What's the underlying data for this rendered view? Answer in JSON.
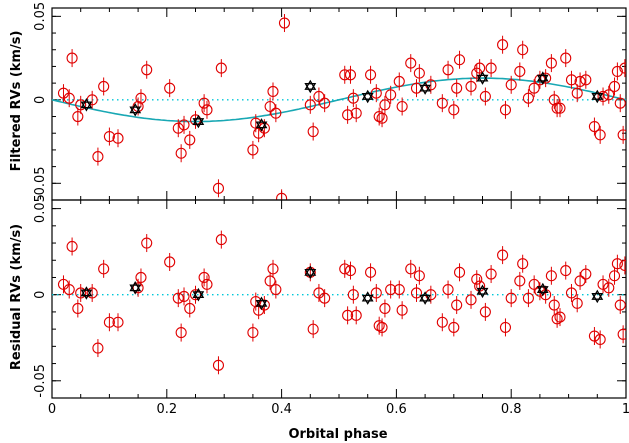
{
  "chart_data": [
    {
      "type": "scatter",
      "name": "filtered",
      "ylabel": "Filtered RVs (km/s)",
      "xlim": [
        0,
        1
      ],
      "ylim": [
        -0.06,
        0.055
      ],
      "y_ticks": [
        0.05,
        0,
        -0.05
      ],
      "y_tick_labels": [
        "0.05",
        "0",
        "-0.05"
      ],
      "zero_line": true,
      "model_curve": {
        "amplitude": 0.013,
        "peak_phase": 0.75
      },
      "points": [
        [
          0.02,
          0.004
        ],
        [
          0.03,
          0.001
        ],
        [
          0.035,
          0.025
        ],
        [
          0.045,
          -0.01
        ],
        [
          0.05,
          -0.003
        ],
        [
          0.07,
          0.0
        ],
        [
          0.08,
          -0.034
        ],
        [
          0.09,
          0.008
        ],
        [
          0.1,
          -0.022
        ],
        [
          0.115,
          -0.023
        ],
        [
          0.15,
          -0.004
        ],
        [
          0.155,
          0.001
        ],
        [
          0.165,
          0.018
        ],
        [
          0.205,
          0.007
        ],
        [
          0.22,
          -0.017
        ],
        [
          0.225,
          -0.032
        ],
        [
          0.23,
          -0.015
        ],
        [
          0.24,
          -0.024
        ],
        [
          0.25,
          -0.012
        ],
        [
          0.265,
          -0.002
        ],
        [
          0.27,
          -0.006
        ],
        [
          0.29,
          -0.053
        ],
        [
          0.295,
          0.019
        ],
        [
          0.35,
          -0.03
        ],
        [
          0.355,
          -0.014
        ],
        [
          0.36,
          -0.02
        ],
        [
          0.37,
          -0.017
        ],
        [
          0.38,
          -0.004
        ],
        [
          0.385,
          0.005
        ],
        [
          0.39,
          -0.008
        ],
        [
          0.4,
          -0.059
        ],
        [
          0.405,
          0.046
        ],
        [
          0.45,
          -0.003
        ],
        [
          0.455,
          -0.019
        ],
        [
          0.465,
          0.002
        ],
        [
          0.475,
          -0.002
        ],
        [
          0.51,
          0.015
        ],
        [
          0.515,
          -0.009
        ],
        [
          0.52,
          0.015
        ],
        [
          0.525,
          0.001
        ],
        [
          0.53,
          -0.008
        ],
        [
          0.555,
          0.015
        ],
        [
          0.565,
          0.004
        ],
        [
          0.57,
          -0.01
        ],
        [
          0.575,
          -0.011
        ],
        [
          0.58,
          -0.003
        ],
        [
          0.59,
          0.003
        ],
        [
          0.605,
          0.011
        ],
        [
          0.61,
          -0.004
        ],
        [
          0.625,
          0.022
        ],
        [
          0.635,
          0.007
        ],
        [
          0.64,
          0.016
        ],
        [
          0.66,
          0.009
        ],
        [
          0.68,
          -0.002
        ],
        [
          0.69,
          0.018
        ],
        [
          0.7,
          -0.006
        ],
        [
          0.705,
          0.007
        ],
        [
          0.71,
          0.024
        ],
        [
          0.73,
          0.008
        ],
        [
          0.74,
          0.016
        ],
        [
          0.745,
          0.019
        ],
        [
          0.755,
          0.002
        ],
        [
          0.765,
          0.019
        ],
        [
          0.785,
          0.033
        ],
        [
          0.79,
          -0.006
        ],
        [
          0.8,
          0.009
        ],
        [
          0.815,
          0.017
        ],
        [
          0.82,
          0.03
        ],
        [
          0.83,
          0.001
        ],
        [
          0.84,
          0.007
        ],
        [
          0.85,
          0.012
        ],
        [
          0.86,
          0.013
        ],
        [
          0.87,
          0.022
        ],
        [
          0.875,
          0.0
        ],
        [
          0.88,
          -0.005
        ],
        [
          0.885,
          -0.005
        ],
        [
          0.895,
          0.025
        ],
        [
          0.905,
          0.012
        ],
        [
          0.915,
          0.004
        ],
        [
          0.92,
          0.011
        ],
        [
          0.93,
          0.012
        ],
        [
          0.945,
          -0.016
        ],
        [
          0.955,
          -0.021
        ],
        [
          0.96,
          0.002
        ],
        [
          0.97,
          0.003
        ],
        [
          0.98,
          0.008
        ],
        [
          0.985,
          0.017
        ],
        [
          0.99,
          -0.002
        ],
        [
          0.995,
          -0.021
        ],
        [
          0.998,
          0.019
        ]
      ],
      "binned_points": [
        [
          0.06,
          -0.003
        ],
        [
          0.145,
          -0.006
        ],
        [
          0.255,
          -0.013
        ],
        [
          0.365,
          -0.015
        ],
        [
          0.45,
          0.008
        ],
        [
          0.55,
          0.002
        ],
        [
          0.65,
          0.007
        ],
        [
          0.75,
          0.013
        ],
        [
          0.855,
          0.013
        ],
        [
          0.95,
          0.002
        ]
      ]
    },
    {
      "type": "scatter",
      "name": "residual",
      "xlabel": "Orbital phase",
      "ylabel": "Residual RVs (km/s)",
      "xlim": [
        0,
        1
      ],
      "ylim": [
        -0.06,
        0.055
      ],
      "x_ticks": [
        0,
        0.2,
        0.4,
        0.6,
        0.8,
        1
      ],
      "x_tick_labels": [
        "0",
        "0.2",
        "0.4",
        "0.6",
        "0.8",
        "1"
      ],
      "y_ticks": [
        0.05,
        0,
        -0.05
      ],
      "y_tick_labels": [
        "0.05",
        "0",
        "-0.05"
      ],
      "zero_line": true,
      "points": [
        [
          0.02,
          0.006
        ],
        [
          0.03,
          0.003
        ],
        [
          0.035,
          0.028
        ],
        [
          0.045,
          -0.008
        ],
        [
          0.05,
          0.001
        ],
        [
          0.07,
          0.001
        ],
        [
          0.08,
          -0.031
        ],
        [
          0.09,
          0.015
        ],
        [
          0.1,
          -0.016
        ],
        [
          0.115,
          -0.016
        ],
        [
          0.15,
          0.004
        ],
        [
          0.155,
          0.01
        ],
        [
          0.165,
          0.03
        ],
        [
          0.205,
          0.019
        ],
        [
          0.22,
          -0.002
        ],
        [
          0.225,
          -0.022
        ],
        [
          0.23,
          -0.001
        ],
        [
          0.24,
          -0.008
        ],
        [
          0.25,
          0.0
        ],
        [
          0.265,
          0.01
        ],
        [
          0.27,
          0.006
        ],
        [
          0.29,
          -0.041
        ],
        [
          0.295,
          0.032
        ],
        [
          0.35,
          -0.022
        ],
        [
          0.355,
          -0.004
        ],
        [
          0.36,
          -0.009
        ],
        [
          0.37,
          -0.006
        ],
        [
          0.38,
          0.008
        ],
        [
          0.385,
          0.015
        ],
        [
          0.39,
          0.003
        ],
        [
          0.45,
          0.013
        ],
        [
          0.455,
          -0.02
        ],
        [
          0.465,
          0.001
        ],
        [
          0.475,
          -0.002
        ],
        [
          0.51,
          0.015
        ],
        [
          0.515,
          -0.012
        ],
        [
          0.52,
          0.014
        ],
        [
          0.525,
          0.0
        ],
        [
          0.53,
          -0.012
        ],
        [
          0.555,
          0.013
        ],
        [
          0.565,
          0.001
        ],
        [
          0.57,
          -0.018
        ],
        [
          0.575,
          -0.019
        ],
        [
          0.58,
          -0.008
        ],
        [
          0.59,
          0.003
        ],
        [
          0.605,
          0.003
        ],
        [
          0.61,
          -0.009
        ],
        [
          0.625,
          0.015
        ],
        [
          0.635,
          0.001
        ],
        [
          0.64,
          0.011
        ],
        [
          0.66,
          0.0
        ],
        [
          0.68,
          -0.016
        ],
        [
          0.69,
          0.003
        ],
        [
          0.7,
          -0.019
        ],
        [
          0.705,
          -0.006
        ],
        [
          0.71,
          0.013
        ],
        [
          0.73,
          -0.003
        ],
        [
          0.74,
          0.009
        ],
        [
          0.745,
          0.005
        ],
        [
          0.755,
          -0.01
        ],
        [
          0.765,
          0.012
        ],
        [
          0.785,
          0.023
        ],
        [
          0.79,
          -0.019
        ],
        [
          0.8,
          -0.002
        ],
        [
          0.815,
          0.008
        ],
        [
          0.82,
          0.018
        ],
        [
          0.83,
          -0.002
        ],
        [
          0.84,
          0.006
        ],
        [
          0.85,
          0.002
        ],
        [
          0.86,
          0.0
        ],
        [
          0.87,
          0.011
        ],
        [
          0.875,
          -0.006
        ],
        [
          0.88,
          -0.014
        ],
        [
          0.885,
          -0.013
        ],
        [
          0.895,
          0.014
        ],
        [
          0.905,
          0.001
        ],
        [
          0.915,
          -0.005
        ],
        [
          0.92,
          0.008
        ],
        [
          0.93,
          0.012
        ],
        [
          0.945,
          -0.024
        ],
        [
          0.955,
          -0.026
        ],
        [
          0.96,
          0.006
        ],
        [
          0.97,
          0.004
        ],
        [
          0.98,
          0.011
        ],
        [
          0.985,
          0.018
        ],
        [
          0.99,
          -0.006
        ],
        [
          0.995,
          -0.023
        ],
        [
          0.998,
          0.017
        ]
      ],
      "binned_points": [
        [
          0.06,
          0.001
        ],
        [
          0.145,
          0.004
        ],
        [
          0.255,
          0.0
        ],
        [
          0.365,
          -0.005
        ],
        [
          0.45,
          0.013
        ],
        [
          0.55,
          -0.002
        ],
        [
          0.65,
          -0.002
        ],
        [
          0.75,
          0.002
        ],
        [
          0.855,
          0.003
        ],
        [
          0.95,
          -0.001
        ]
      ]
    }
  ],
  "colors": {
    "points": "#e00000",
    "binned": "#000000",
    "model": "#19a8b4",
    "zero_line": "#00c8d8"
  }
}
